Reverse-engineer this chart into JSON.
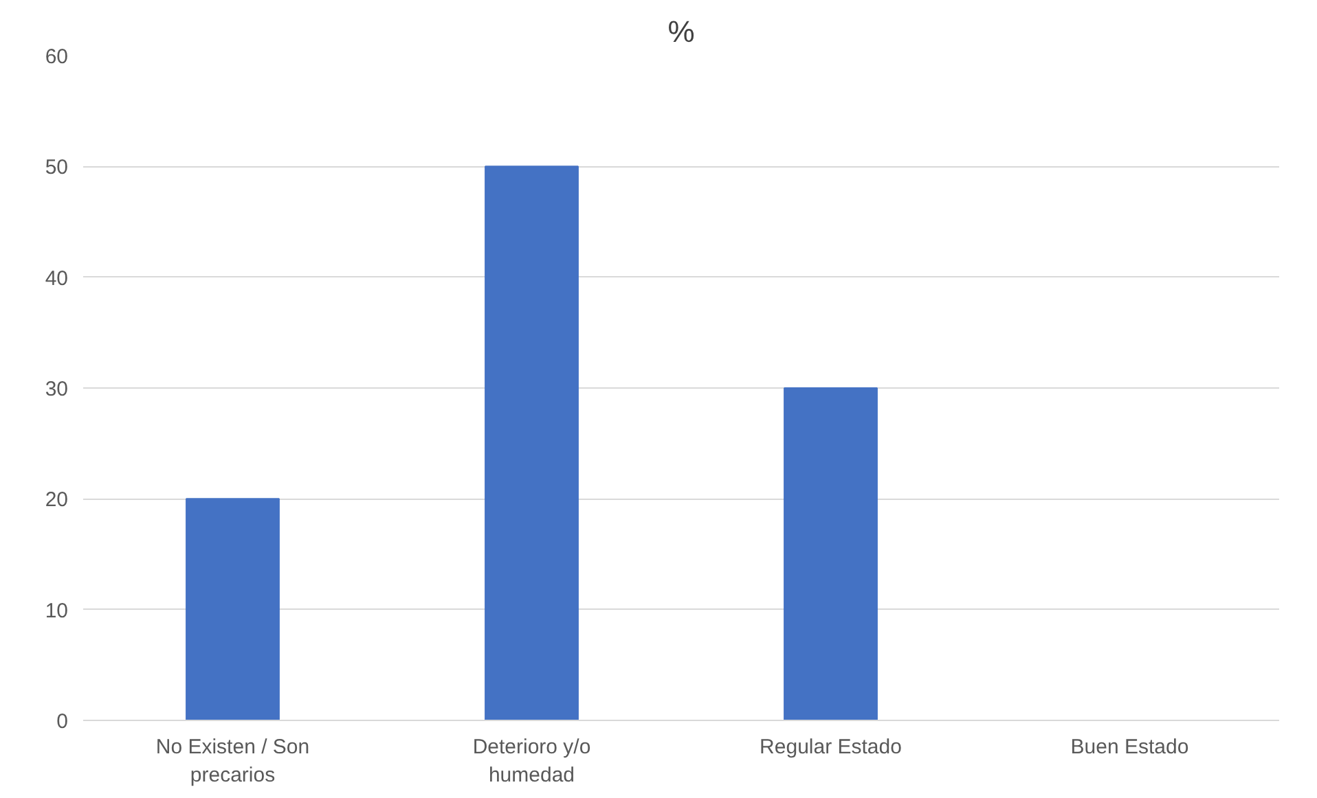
{
  "chart_data": {
    "type": "bar",
    "title": "%",
    "categories": [
      "No Existen / Son precarios",
      "Deterioro y/o humedad",
      "Regular Estado",
      "Buen Estado"
    ],
    "values": [
      20,
      50,
      30,
      0
    ],
    "color": "#4472c4",
    "ylim": [
      0,
      60
    ],
    "yticks": [
      0,
      10,
      20,
      30,
      40,
      50,
      60
    ],
    "grid": "y"
  }
}
